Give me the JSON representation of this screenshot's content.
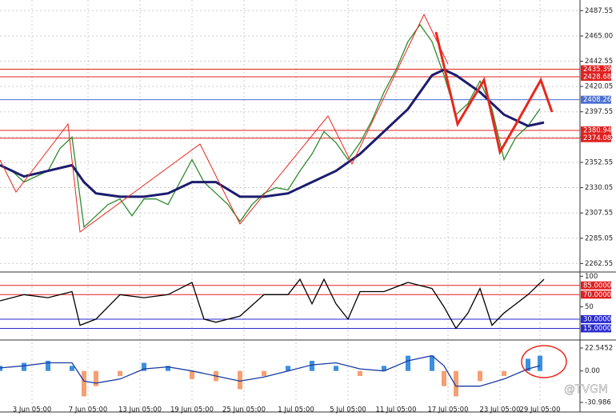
{
  "chart_data": [
    {
      "type": "line",
      "xlim": [
        0,
        145
      ],
      "xticks": [
        {
          "value": 8,
          "label": "3 Jun 05:00"
        },
        {
          "value": 22,
          "label": "7 Jun 05:00"
        },
        {
          "value": 35,
          "label": "13 Jun 05:00"
        },
        {
          "value": 48,
          "label": "19 Jun 05:00"
        },
        {
          "value": 61,
          "label": "25 Jun 05:00"
        },
        {
          "value": 74,
          "label": "1 Jul 05:00"
        },
        {
          "value": 87,
          "label": "5 Jul 05:00"
        },
        {
          "value": 99,
          "label": "11 Jul 05:00"
        },
        {
          "value": 112,
          "label": "17 Jul 05:00"
        },
        {
          "value": 125,
          "label": "23 Jul 05:00"
        },
        {
          "value": 135,
          "label": "29 Jul 05:00"
        }
      ],
      "ylim": [
        2255,
        2497
      ],
      "yticks": [
        2487.55,
        {
          "value": 2465,
          "label": "2465.00"
        },
        2442.55,
        2420.05,
        2397.55,
        2375.05,
        2352.55,
        2330.05,
        2307.55,
        2285.05,
        2262.55
      ],
      "grid": true,
      "levels": [
        {
          "value": 2435.39,
          "label": "2435.39",
          "color": "#e02020"
        },
        {
          "value": 2428.68,
          "label": "2428.68",
          "color": "#e02020"
        },
        {
          "value": 2408.26,
          "label": "2408.26",
          "color": "#4a6fd0"
        },
        {
          "value": 2380.94,
          "label": "2380.94",
          "color": "#e02020"
        },
        {
          "value": 2374.08,
          "label": "2374.08",
          "color": "#e02020"
        }
      ],
      "series": [
        {
          "color": "#2e8b2e",
          "x": [
            0,
            3,
            6,
            9,
            12,
            15,
            18,
            21,
            24,
            27,
            30,
            33,
            36,
            39,
            42,
            45,
            48,
            51,
            54,
            57,
            60,
            63,
            66,
            69,
            72,
            75,
            78,
            81,
            84,
            87,
            90,
            93,
            96,
            99,
            102,
            105,
            108,
            111,
            114,
            117,
            120,
            123,
            126,
            129,
            132,
            135
          ],
          "values": [
            2350,
            2345,
            2335,
            2340,
            2345,
            2365,
            2375,
            2295,
            2305,
            2315,
            2320,
            2305,
            2320,
            2320,
            2315,
            2335,
            2355,
            2335,
            2325,
            2315,
            2300,
            2315,
            2325,
            2330,
            2328,
            2345,
            2360,
            2380,
            2370,
            2355,
            2370,
            2390,
            2415,
            2435,
            2460,
            2475,
            2460,
            2430,
            2395,
            2405,
            2425,
            2400,
            2355,
            2375,
            2385,
            2400
          ]
        },
        {
          "color": "#1c1c6e",
          "x": [
            0,
            6,
            12,
            18,
            21,
            24,
            30,
            36,
            42,
            48,
            54,
            60,
            66,
            72,
            78,
            84,
            90,
            96,
            102,
            108,
            111,
            114,
            120,
            126,
            132,
            136
          ],
          "values": [
            2350,
            2340,
            2345,
            2350,
            2335,
            2325,
            2322,
            2322,
            2325,
            2335,
            2335,
            2322,
            2322,
            2325,
            2335,
            2345,
            2360,
            2380,
            2400,
            2430,
            2435,
            2430,
            2415,
            2395,
            2385,
            2388
          ]
        }
      ]
    },
    {
      "type": "line",
      "xlim": [
        0,
        145
      ],
      "ylim": [
        -4,
        103
      ],
      "yticks": [
        100,
        50
      ],
      "levels": [
        {
          "value": 85,
          "label": "85.0000",
          "color": "#e02020"
        },
        {
          "value": 70,
          "label": "70.0000",
          "color": "#e02020"
        },
        {
          "value": 30,
          "label": "30.0000",
          "color": "#2a2ad0"
        },
        {
          "value": 15,
          "label": "15.0000",
          "color": "#2a2ad0"
        }
      ],
      "series": [
        {
          "color": "#000000",
          "x": [
            0,
            6,
            12,
            18,
            20,
            24,
            30,
            36,
            42,
            48,
            51,
            54,
            60,
            66,
            72,
            75,
            78,
            81,
            84,
            87,
            90,
            96,
            102,
            108,
            111,
            114,
            117,
            120,
            123,
            126,
            132,
            136
          ],
          "values": [
            60,
            70,
            65,
            75,
            20,
            30,
            70,
            65,
            70,
            90,
            30,
            25,
            35,
            70,
            70,
            95,
            55,
            95,
            55,
            30,
            75,
            75,
            90,
            80,
            50,
            15,
            40,
            80,
            20,
            40,
            70,
            95
          ]
        }
      ]
    },
    {
      "type": "line",
      "xlim": [
        0,
        145
      ],
      "ylim": [
        -40.4,
        28.1
      ],
      "yticks": [
        22.5452,
        {
          "value": 0,
          "label": "0.00"
        },
        -30.986
      ],
      "series": [
        {
          "type": "bar",
          "color": "#3a8fe0",
          "color_down": "#f4a070",
          "x": [
            0,
            6,
            12,
            18,
            21,
            24,
            30,
            36,
            42,
            48,
            54,
            60,
            66,
            72,
            78,
            84,
            90,
            96,
            102,
            108,
            111,
            114,
            120,
            126,
            132,
            135
          ],
          "values": [
            5,
            8,
            10,
            5,
            -25,
            -15,
            -5,
            8,
            5,
            -8,
            -10,
            -18,
            -5,
            5,
            10,
            5,
            -5,
            5,
            15,
            15,
            -15,
            -25,
            -10,
            -5,
            12,
            15
          ]
        },
        {
          "color": "#1a3aa0",
          "x": [
            0,
            6,
            12,
            18,
            21,
            24,
            30,
            36,
            42,
            48,
            54,
            60,
            66,
            72,
            78,
            84,
            90,
            96,
            102,
            108,
            111,
            114,
            120,
            126,
            132,
            135
          ],
          "values": [
            3,
            5,
            8,
            8,
            -10,
            -12,
            -8,
            2,
            4,
            0,
            -5,
            -10,
            -6,
            0,
            6,
            8,
            2,
            0,
            10,
            15,
            5,
            -15,
            -15,
            -8,
            2,
            5
          ]
        }
      ]
    }
  ],
  "watermark": "@TVGM"
}
